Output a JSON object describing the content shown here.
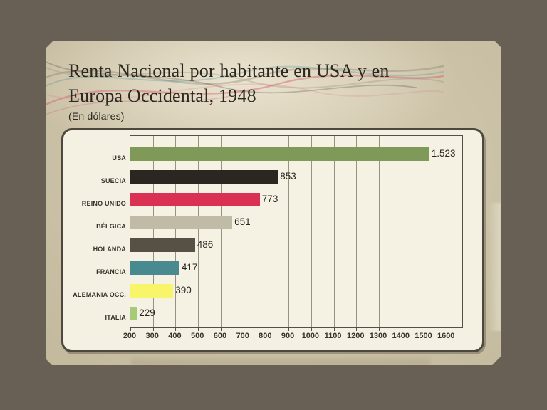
{
  "slide": {
    "title_line1": "Renta Nacional por habitante en USA y en",
    "title_line2": "Europa Occidental, 1948",
    "subtitle": "(En dólares)"
  },
  "chart_data": {
    "type": "bar",
    "orientation": "horizontal",
    "title": "Renta Nacional por habitante en USA y en Europa Occidental, 1948",
    "units_note": "En dólares",
    "categories": [
      "USA",
      "SUECIA",
      "REINO UNIDO",
      "BÉLGICA",
      "HOLANDA",
      "FRANCIA",
      "ALEMANIA OCC.",
      "ITALIA"
    ],
    "values": [
      1523,
      853,
      773,
      651,
      486,
      417,
      390,
      229
    ],
    "value_labels": [
      "1.523",
      "853",
      "773",
      "651",
      "486",
      "417",
      "390",
      "229"
    ],
    "bar_colors": [
      "#7f9a58",
      "#2b2620",
      "#d93053",
      "#c0bba6",
      "#575045",
      "#498a91",
      "#f9f56b",
      "#a5cb79"
    ],
    "x_axis": {
      "min": 200,
      "max": 1675,
      "tick_start": 200,
      "tick_end": 1600,
      "tick_step": 100,
      "tick_labels": [
        "200",
        "300",
        "400",
        "500",
        "600",
        "700",
        "800",
        "900",
        "1000",
        "1100",
        "1200",
        "1300",
        "1400",
        "1500",
        "1600"
      ]
    },
    "grid": true,
    "legend": false
  },
  "colors": {
    "canvas_bg": "#696055",
    "slide_bg": "#cbc2a7",
    "panel_bg": "#f5f1e2",
    "panel_border": "#4e473d",
    "gridline": "#77715f",
    "text": "#2c2820",
    "flourish_teal": "#4e939b",
    "flourish_red": "#d04a60",
    "flourish_gray": "#6f6958"
  }
}
